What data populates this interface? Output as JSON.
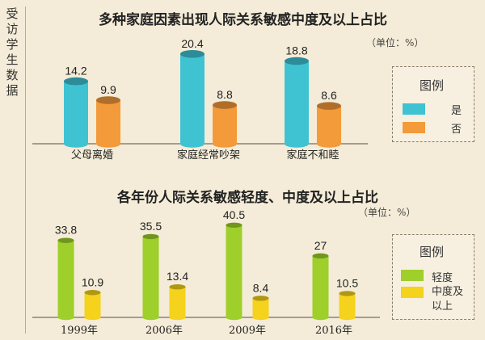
{
  "side_label": "受访学生数据",
  "chart_data": [
    {
      "type": "bar",
      "title": "多种家庭因素出现人际关系敏感中度及以上占比",
      "unit": "（单位：%）",
      "categories": [
        "父母离婚",
        "家庭经常吵架",
        "家庭不和睦"
      ],
      "series": [
        {
          "name": "是",
          "values": [
            14.2,
            20.4,
            18.8
          ],
          "color": "#3fc3d3"
        },
        {
          "name": "否",
          "values": [
            9.9,
            8.8,
            8.6
          ],
          "color": "#f39a3a"
        }
      ],
      "legend_title": "图例",
      "legend_placement": "right",
      "grid": false
    },
    {
      "type": "bar",
      "title": "各年份人际关系敏感轻度、中度及以上占比",
      "unit": "（单位：%）",
      "categories": [
        "1999年",
        "2006年",
        "2009年",
        "2016年"
      ],
      "series": [
        {
          "name": "轻度",
          "values": [
            33.8,
            35.5,
            40.5,
            27
          ],
          "color": "#9ecf2a"
        },
        {
          "name": "中度及以上",
          "values": [
            10.9,
            13.4,
            8.4,
            10.5
          ],
          "color": "#f5d21c"
        }
      ],
      "legend_title": "图例",
      "legend_placement": "right",
      "grid": false
    }
  ]
}
